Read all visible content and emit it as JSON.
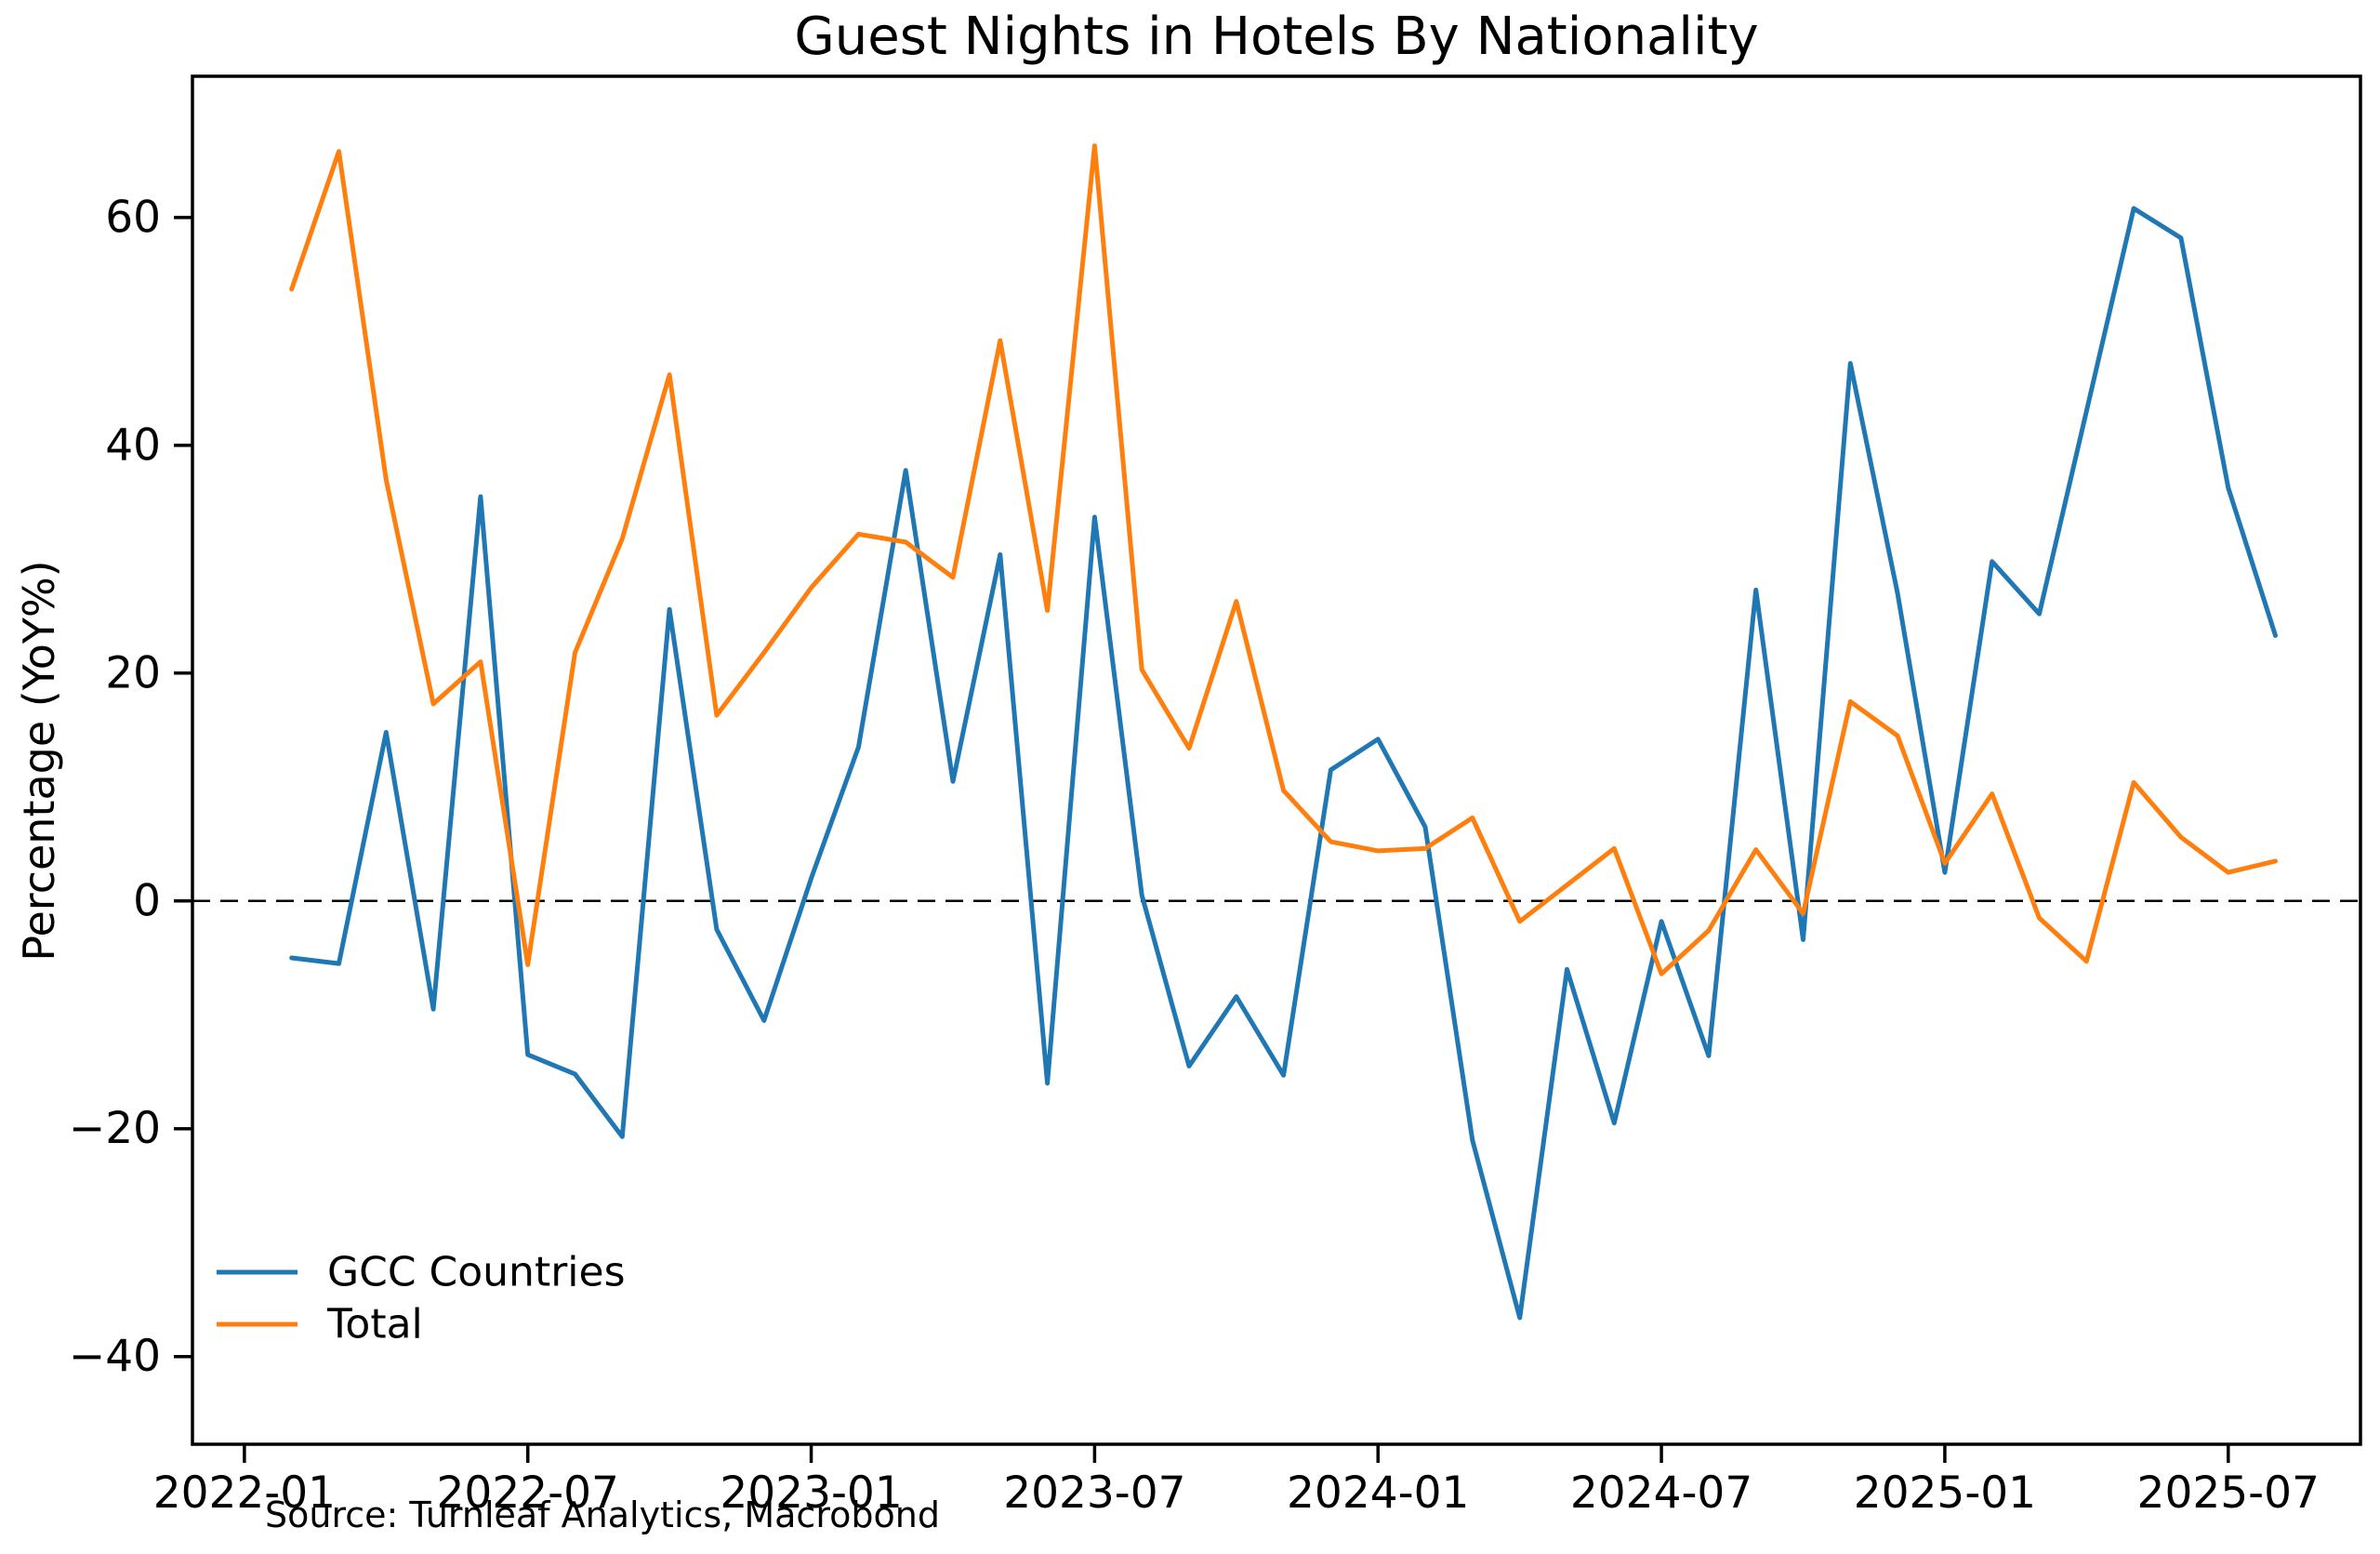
{
  "title": "Guest Nights in Hotels By Nationality",
  "source_note": "Source: Turnleaf Analytics, Macrobond",
  "axes": {
    "ylabel": "Percentage (YoY%)"
  },
  "legend": {
    "position": "lower-left",
    "items": [
      {
        "label": "GCC Countries",
        "color": "#1f77b4"
      },
      {
        "label": "Total",
        "color": "#ff7f0e"
      }
    ]
  },
  "chart_data": {
    "type": "line",
    "title": "Guest Nights in Hotels By Nationality",
    "xlabel": "",
    "ylabel": "Percentage (YoY%)",
    "grid": false,
    "zero_line_dashed": true,
    "legend_position": "lower left",
    "x_tick_labels": [
      "2022-01",
      "2022-07",
      "2023-01",
      "2023-07",
      "2024-01",
      "2024-07",
      "2025-01",
      "2025-07"
    ],
    "x_tick_month_index": [
      0,
      6,
      12,
      18,
      24,
      30,
      36,
      42
    ],
    "y_ticks": [
      60,
      40,
      20,
      0,
      -20,
      -40
    ],
    "ylim": [
      -47.7,
      72.4
    ],
    "xlim_month_index": [
      -1.1,
      44.8
    ],
    "first_data_month_index": 1,
    "months": [
      "2022-02",
      "2022-03",
      "2022-04",
      "2022-05",
      "2022-06",
      "2022-07",
      "2022-08",
      "2022-09",
      "2022-10",
      "2022-11",
      "2022-12",
      "2023-01",
      "2023-02",
      "2023-03",
      "2023-04",
      "2023-05",
      "2023-06",
      "2023-07",
      "2023-08",
      "2023-09",
      "2023-10",
      "2023-11",
      "2023-12",
      "2024-01",
      "2024-02",
      "2024-03",
      "2024-04",
      "2024-05",
      "2024-06",
      "2024-07",
      "2024-08",
      "2024-09",
      "2024-10",
      "2024-11",
      "2024-12",
      "2025-01",
      "2025-02",
      "2025-03",
      "2025-04",
      "2025-05",
      "2025-06",
      "2025-07",
      "2025-08"
    ],
    "series": [
      {
        "name": "GCC Countries",
        "color": "#1f77b4",
        "values": [
          -5.0,
          -5.5,
          14.8,
          -9.5,
          35.5,
          -13.5,
          -15.2,
          -20.7,
          25.6,
          -2.5,
          -10.5,
          2.0,
          13.5,
          37.8,
          10.5,
          30.4,
          -16.0,
          33.7,
          0.5,
          -14.5,
          -8.4,
          -15.3,
          11.5,
          14.2,
          6.5,
          -21.0,
          -36.6,
          -6.0,
          -19.5,
          -1.8,
          -13.6,
          27.3,
          -3.4,
          47.2,
          27.0,
          2.5,
          29.8,
          25.2,
          43.0,
          60.8,
          58.2,
          36.3,
          23.3
        ]
      },
      {
        "name": "Total",
        "color": "#ff7f0e",
        "values": [
          53.7,
          65.8,
          37.0,
          17.3,
          21.0,
          -5.6,
          21.8,
          31.8,
          46.2,
          16.3,
          21.8,
          27.5,
          32.2,
          31.5,
          28.4,
          49.2,
          25.5,
          66.3,
          20.3,
          13.4,
          26.3,
          9.7,
          5.2,
          4.4,
          4.6,
          7.3,
          -1.8,
          1.4,
          4.6,
          -6.4,
          -2.6,
          4.5,
          -1.1,
          17.5,
          14.5,
          3.3,
          9.4,
          -1.5,
          -5.3,
          10.4,
          5.6,
          2.5,
          3.5
        ]
      }
    ]
  }
}
